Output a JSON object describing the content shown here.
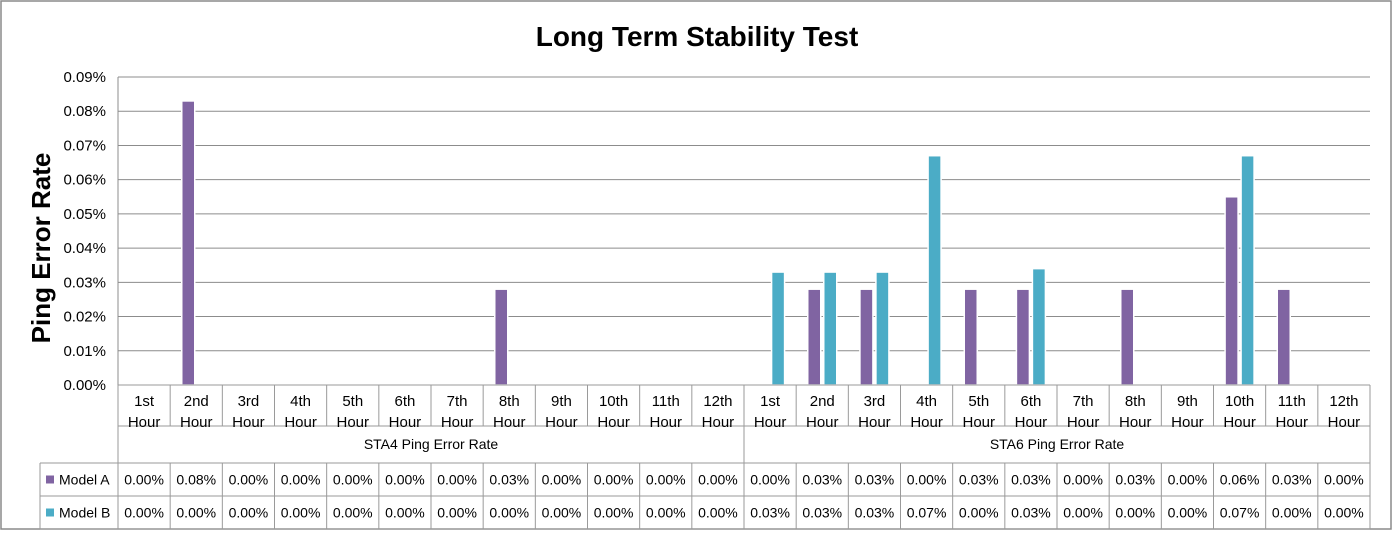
{
  "chart_data": {
    "type": "bar",
    "title": "Long Term Stability Test",
    "ylabel": "Ping Error Rate",
    "ylim": [
      0,
      0.0009
    ],
    "yticks": [
      "0.00%",
      "0.01%",
      "0.02%",
      "0.03%",
      "0.04%",
      "0.05%",
      "0.06%",
      "0.07%",
      "0.08%",
      "0.09%"
    ],
    "groups": [
      {
        "label": "STA4 Ping Error Rate",
        "categories": [
          [
            "1st",
            "Hour"
          ],
          [
            "2nd",
            "Hour"
          ],
          [
            "3rd",
            "Hour"
          ],
          [
            "4th",
            "Hour"
          ],
          [
            "5th",
            "Hour"
          ],
          [
            "6th",
            "Hour"
          ],
          [
            "7th",
            "Hour"
          ],
          [
            "8th",
            "Hour"
          ],
          [
            "9th",
            "Hour"
          ],
          [
            "10th",
            "Hour"
          ],
          [
            "11th",
            "Hour"
          ],
          [
            "12th",
            "Hour"
          ]
        ]
      },
      {
        "label": "STA6  Ping Error Rate",
        "categories": [
          [
            "1st",
            "Hour"
          ],
          [
            "2nd",
            "Hour"
          ],
          [
            "3rd",
            "Hour"
          ],
          [
            "4th",
            "Hour"
          ],
          [
            "5th",
            "Hour"
          ],
          [
            "6th",
            "Hour"
          ],
          [
            "7th",
            "Hour"
          ],
          [
            "8th",
            "Hour"
          ],
          [
            "9th",
            "Hour"
          ],
          [
            "10th",
            "Hour"
          ],
          [
            "11th",
            "Hour"
          ],
          [
            "12th",
            "Hour"
          ]
        ]
      }
    ],
    "series": [
      {
        "name": "Model A",
        "color": "#8064a2",
        "values": [
          0,
          0.00083,
          0,
          0,
          0,
          0,
          0,
          0.00028,
          0,
          0,
          0,
          0,
          0,
          0.00028,
          0.00028,
          0,
          0.00028,
          0.00028,
          0,
          0.00028,
          0,
          0.00055,
          0.00028,
          0
        ],
        "labels": [
          "0.00%",
          "0.08%",
          "0.00%",
          "0.00%",
          "0.00%",
          "0.00%",
          "0.00%",
          "0.03%",
          "0.00%",
          "0.00%",
          "0.00%",
          "0.00%",
          "0.00%",
          "0.03%",
          "0.03%",
          "0.00%",
          "0.03%",
          "0.03%",
          "0.00%",
          "0.03%",
          "0.00%",
          "0.06%",
          "0.03%",
          "0.00%"
        ]
      },
      {
        "name": "Model B",
        "color": "#4bacc6",
        "values": [
          0,
          0,
          0,
          0,
          0,
          0,
          0,
          0,
          0,
          0,
          0,
          0,
          0.00033,
          0.00033,
          0.00033,
          0.00067,
          0,
          0.00034,
          0,
          0,
          0,
          0.00067,
          0,
          0
        ],
        "labels": [
          "0.00%",
          "0.00%",
          "0.00%",
          "0.00%",
          "0.00%",
          "0.00%",
          "0.00%",
          "0.00%",
          "0.00%",
          "0.00%",
          "0.00%",
          "0.00%",
          "0.03%",
          "0.03%",
          "0.03%",
          "0.07%",
          "0.00%",
          "0.03%",
          "0.00%",
          "0.00%",
          "0.00%",
          "0.07%",
          "0.00%",
          "0.00%"
        ]
      }
    ],
    "grid": true,
    "legend": "data-table"
  }
}
